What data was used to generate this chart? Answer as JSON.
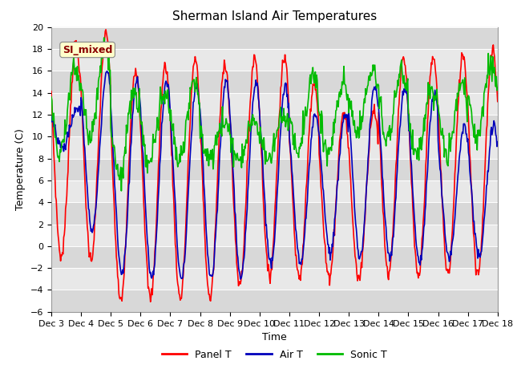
{
  "title": "Sherman Island Air Temperatures",
  "xlabel": "Time",
  "ylabel": "Temperature (C)",
  "ylim": [
    -6,
    20
  ],
  "xlim": [
    0,
    360
  ],
  "annotation_text": "SI_mixed",
  "annotation_color": "#8B0000",
  "annotation_bg": "#FFFFCC",
  "tick_labels": [
    "Dec 3",
    "Dec 4",
    "Dec 5",
    "Dec 6",
    "Dec 7",
    "Dec 8",
    "Dec 9",
    "Dec 10",
    "Dec 11",
    "Dec 12",
    "Dec 13",
    "Dec 14",
    "Dec 15",
    "Dec 16",
    "Dec 17",
    "Dec 18"
  ],
  "tick_positions": [
    0,
    24,
    48,
    72,
    96,
    120,
    144,
    168,
    192,
    216,
    240,
    264,
    288,
    312,
    336,
    360
  ],
  "bg_bands_light": "#DCDCDC",
  "bg_bands_dark": "#C8C8C8",
  "line_colors": [
    "#FF0000",
    "#0000BB",
    "#00BB00"
  ],
  "line_labels": [
    "Panel T",
    "Air T",
    "Sonic T"
  ],
  "line_width": 1.2,
  "yticks": [
    -6,
    -4,
    -2,
    0,
    2,
    4,
    6,
    8,
    10,
    12,
    14,
    16,
    18,
    20
  ],
  "title_fontsize": 11,
  "label_fontsize": 9,
  "tick_fontsize": 8
}
